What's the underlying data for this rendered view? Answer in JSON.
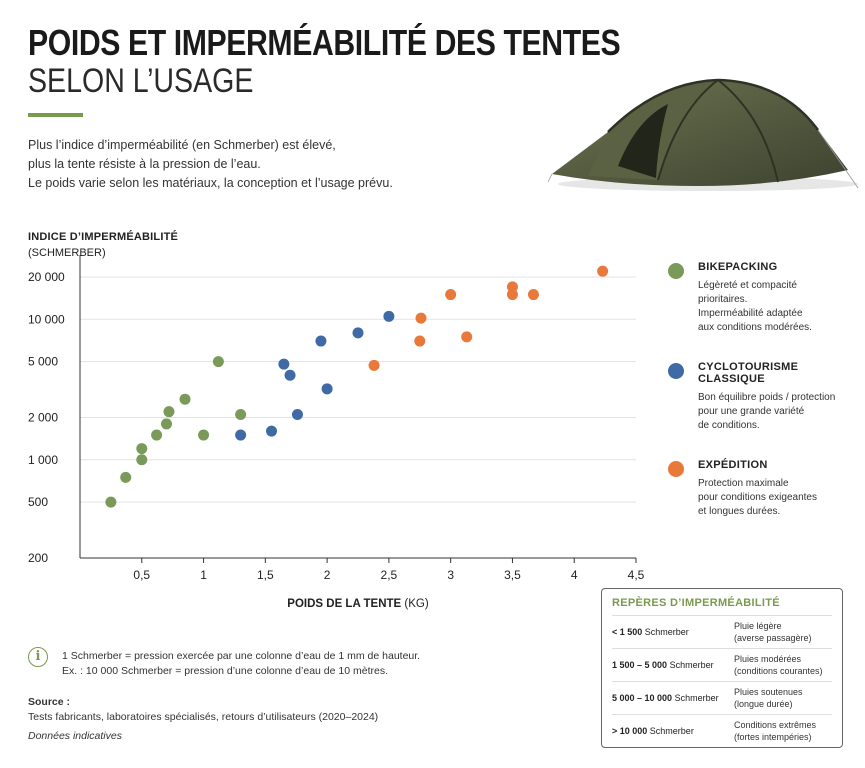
{
  "header": {
    "title_line1": "POIDS ET IMPERMÉABILITÉ DES TENTES",
    "title_line2": "SELON L’USAGE"
  },
  "intro": [
    "Plus l’indice d’imperméabilité (en Schmerber) est élevé,",
    "plus la tente résiste à la pression de l’eau.",
    "Le poids varie selon les matériaux, la conception et l’usage prévu."
  ],
  "colors": {
    "bikepacking": "#7a9a5a",
    "cyclotourisme": "#3f6aa6",
    "expedition": "#e8793a",
    "accent": "#7a9a4f"
  },
  "chart_data": {
    "type": "scatter",
    "ylabel": "INDICE D’IMPERMÉABILITÉ",
    "ylabel_unit": "(SCHMERBER)",
    "xlabel": "POIDS DE LA TENTE",
    "xlabel_unit": "(KG)",
    "y_scale": "log",
    "xlim": [
      0,
      4.5
    ],
    "ylim": [
      200,
      20000
    ],
    "x_ticks": [
      0.5,
      1,
      1.5,
      2,
      2.5,
      3,
      3.5,
      4,
      4.5
    ],
    "x_tick_labels": [
      "0,5",
      "1",
      "1,5",
      "2",
      "2,5",
      "3",
      "3,5",
      "4",
      "4,5"
    ],
    "y_ticks": [
      200,
      500,
      1000,
      2000,
      5000,
      10000,
      20000
    ],
    "y_tick_labels": [
      "200",
      "500",
      "1 000",
      "2 000",
      "5 000",
      "10 000",
      "20 000"
    ],
    "grid": "horizontal",
    "legend_position": "right",
    "series": [
      {
        "name": "BIKEPACKING",
        "color": "#7a9a5a",
        "points": [
          [
            0.25,
            500
          ],
          [
            0.37,
            750
          ],
          [
            0.5,
            1000
          ],
          [
            0.5,
            1200
          ],
          [
            0.62,
            1500
          ],
          [
            0.7,
            1800
          ],
          [
            0.72,
            2200
          ],
          [
            0.85,
            2700
          ],
          [
            1.0,
            1500
          ],
          [
            1.12,
            5000
          ],
          [
            1.3,
            2100
          ]
        ]
      },
      {
        "name": "CYCLOTOURISME CLASSIQUE",
        "color": "#3f6aa6",
        "points": [
          [
            1.3,
            1500
          ],
          [
            1.55,
            1600
          ],
          [
            1.65,
            4800
          ],
          [
            1.7,
            4000
          ],
          [
            1.76,
            2100
          ],
          [
            1.95,
            7000
          ],
          [
            2.0,
            3200
          ],
          [
            2.25,
            8000
          ],
          [
            2.5,
            10500
          ]
        ]
      },
      {
        "name": "EXPÉDITION",
        "color": "#e8793a",
        "points": [
          [
            2.38,
            4700
          ],
          [
            2.75,
            7000
          ],
          [
            2.76,
            10200
          ],
          [
            3.0,
            15000
          ],
          [
            3.13,
            7500
          ],
          [
            3.5,
            17000
          ],
          [
            3.5,
            15000
          ],
          [
            3.67,
            15000
          ],
          [
            4.23,
            22000
          ]
        ]
      }
    ]
  },
  "legend": [
    {
      "name": "BIKEPACKING",
      "color": "#7a9a5a",
      "lines": [
        "Légèreté et compacité",
        "prioritaires.",
        "Imperméabilité adaptée",
        "aux conditions modérées."
      ]
    },
    {
      "name": "CYCLOTOURISME CLASSIQUE",
      "color": "#3f6aa6",
      "lines": [
        "Bon équilibre poids / protection",
        "pour une grande variété",
        "de conditions."
      ]
    },
    {
      "name": "EXPÉDITION",
      "color": "#e8793a",
      "lines": [
        "Protection maximale",
        "pour conditions exigeantes",
        "et longues durées."
      ]
    }
  ],
  "info": {
    "icon": "info-icon",
    "line1": "1 Schmerber = pression exercée par une colonne d’eau de 1 mm de hauteur.",
    "line2": "Ex. : 10 000 Schmerber = pression d’une colonne d’eau de 10 mètres."
  },
  "source": {
    "label": "Source :",
    "text": "Tests fabricants, laboratoires spécialisés, retours d’utilisateurs (2020–2024)",
    "note": "Données indicatives"
  },
  "reperes": {
    "title": "REPÈRES D’IMPERMÉABILITÉ",
    "rows": [
      {
        "range": "< 1 500",
        "unit": "Schmerber",
        "desc1": "Pluie légère",
        "desc2": "(averse passagère)"
      },
      {
        "range": "1 500 – 5 000",
        "unit": "Schmerber",
        "desc1": "Pluies modérées",
        "desc2": "(conditions courantes)"
      },
      {
        "range": "5 000 – 10 000",
        "unit": "Schmerber",
        "desc1": "Pluies soutenues",
        "desc2": "(longue durée)"
      },
      {
        "range": "> 10 000",
        "unit": "Schmerber",
        "desc1": "Conditions extrêmes",
        "desc2": "(fortes intempéries)"
      }
    ]
  }
}
